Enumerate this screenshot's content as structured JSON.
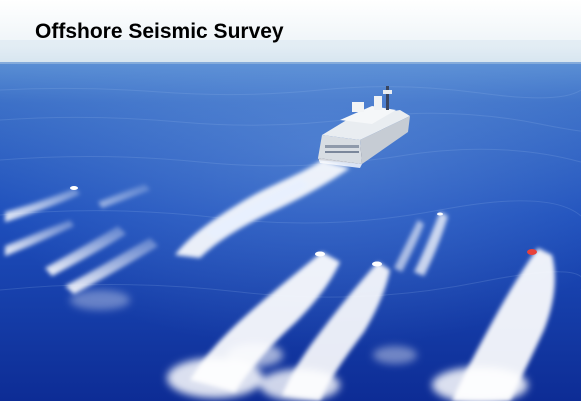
{
  "title": "Offshore Seismic Survey",
  "colors": {
    "sky_top": "#f7fafc",
    "sky_haze": "#d9e7f1",
    "sea_far": "#3a6ec8",
    "sea_mid": "#1d4db8",
    "sea_near": "#0f2f9a",
    "foam": "#ffffff",
    "vessel_hull": "#e9ecef",
    "vessel_shadow": "#2a3550"
  },
  "scene": {
    "subject": "seismic survey vessel",
    "wakes": "multiple streamer and gun-array wakes"
  }
}
